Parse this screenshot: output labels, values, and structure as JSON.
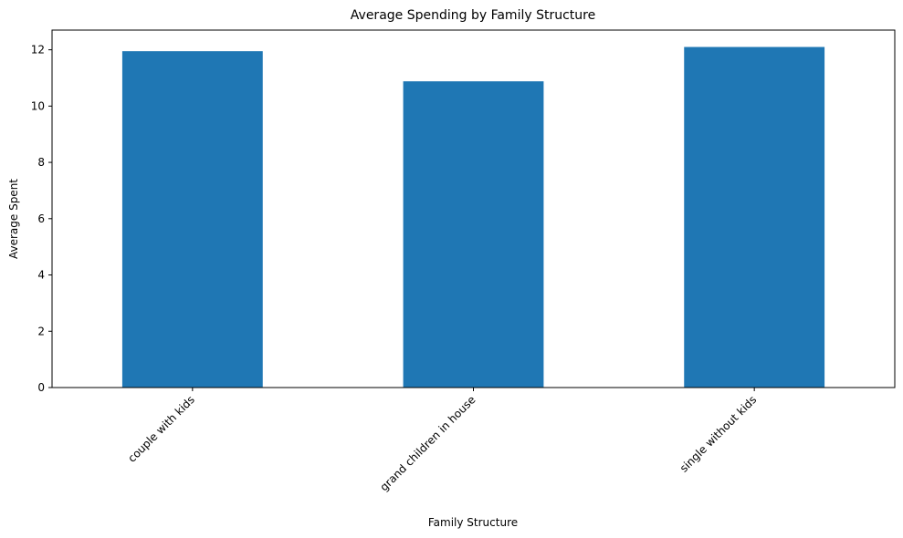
{
  "chart_data": {
    "type": "bar",
    "title": "Average Spending by Family Structure",
    "xlabel": "Family Structure",
    "ylabel": "Average Spent",
    "categories": [
      "couple with kids",
      "grand children in house",
      "single without kids"
    ],
    "values": [
      11.95,
      10.88,
      12.1
    ],
    "ylim": [
      0,
      12.7
    ],
    "yticks": [
      0,
      2,
      4,
      6,
      8,
      10,
      12
    ],
    "bar_color": "#1f77b4",
    "grid": false,
    "legend": "none"
  }
}
